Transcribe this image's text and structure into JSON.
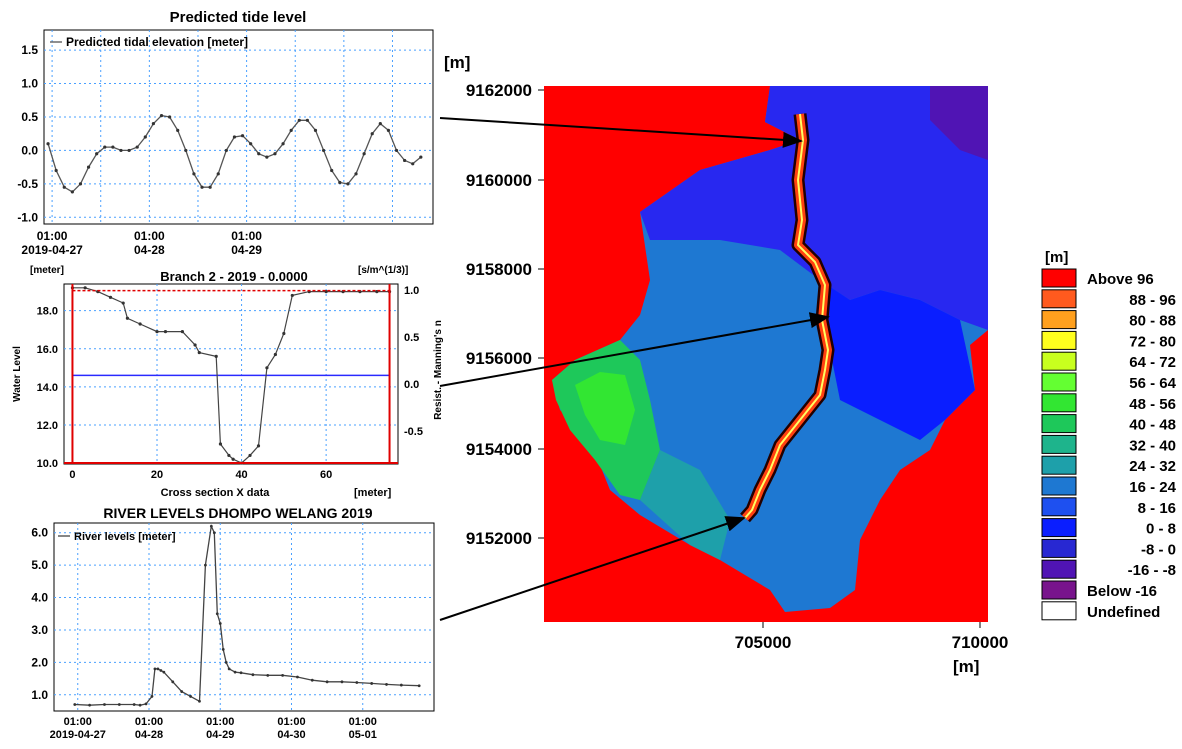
{
  "chart_data": [
    {
      "type": "line",
      "title": "Predicted tide level",
      "series": [
        {
          "name": "Predicted tidal elevation [meter]",
          "x": [
            0,
            2,
            4,
            6,
            8,
            10,
            12,
            14,
            16,
            18,
            20,
            22,
            24,
            26,
            28,
            30,
            32,
            34,
            36,
            38,
            40,
            42,
            44,
            46,
            48,
            50,
            52,
            54,
            56,
            58,
            60,
            62,
            64,
            66,
            68,
            70,
            72,
            74,
            76,
            78,
            80,
            82,
            84,
            86,
            88,
            90,
            92
          ],
          "values": [
            0.1,
            -0.3,
            -0.55,
            -0.62,
            -0.5,
            -0.25,
            -0.05,
            0.05,
            0.05,
            0.0,
            0.0,
            0.05,
            0.2,
            0.4,
            0.52,
            0.5,
            0.3,
            0.0,
            -0.35,
            -0.55,
            -0.55,
            -0.35,
            0.0,
            0.2,
            0.22,
            0.1,
            -0.05,
            -0.1,
            -0.05,
            0.1,
            0.3,
            0.45,
            0.45,
            0.3,
            0.0,
            -0.3,
            -0.48,
            -0.5,
            -0.35,
            -0.05,
            0.25,
            0.4,
            0.3,
            0.0,
            -0.15,
            -0.2,
            -0.1
          ]
        }
      ],
      "xticks": [
        {
          "h": 1,
          "top": "01:00",
          "bottom": "2019-04-27"
        },
        {
          "h": 25,
          "top": "01:00",
          "bottom": "04-28"
        },
        {
          "h": 49,
          "top": "01:00",
          "bottom": "04-29"
        }
      ],
      "yticks": [
        "1.5",
        "1.0",
        "0.5",
        "0.0",
        "-0.5",
        "-1.0"
      ],
      "ylim": [
        -1.1,
        1.8
      ]
    },
    {
      "type": "line",
      "title": "Branch 2 - 2019 - 0.0000",
      "left_unit": "[meter]",
      "right_unit": "[s/m^(1/3)]",
      "xlabel": "Cross section X data",
      "xunit": "[meter]",
      "ylabel": "Water Level",
      "y2label": "Resist. - Manning's n",
      "xlim": [
        -2,
        77
      ],
      "ylim": [
        9.95,
        19.4
      ],
      "xticks": [
        "0",
        "20",
        "40",
        "60"
      ],
      "yticks": [
        "18.0",
        "16.0",
        "14.0",
        "12.0",
        "10.0"
      ],
      "y2ticks": [
        "1.0",
        "0.5",
        "0.0",
        "-0.5"
      ],
      "profile_x": [
        0,
        3,
        6,
        9,
        12,
        13,
        16,
        20,
        22,
        26,
        29,
        30,
        34,
        35,
        37,
        38,
        40,
        42,
        44,
        46,
        48,
        50,
        52,
        56,
        60,
        64,
        68,
        72,
        75
      ],
      "profile_y": [
        19.2,
        19.2,
        19.0,
        18.7,
        18.4,
        17.6,
        17.3,
        16.9,
        16.9,
        16.9,
        16.2,
        15.8,
        15.6,
        11.0,
        10.4,
        10.2,
        10.0,
        10.4,
        10.9,
        15.0,
        15.7,
        16.8,
        18.8,
        19.0,
        19.0,
        19.0,
        19.0,
        19.0,
        19.0
      ],
      "water_level": 14.6
    },
    {
      "type": "line",
      "title": "RIVER LEVELS DHOMPO WELANG 2019",
      "series": [
        {
          "name": "River levels [meter]",
          "x": [
            0,
            5,
            10,
            15,
            20,
            22,
            24,
            26,
            27,
            28,
            29,
            30,
            33,
            36,
            39,
            42,
            44,
            46,
            47,
            48,
            49,
            50,
            51,
            52,
            54,
            56,
            60,
            65,
            70,
            75,
            80,
            85,
            90,
            95,
            100,
            105,
            110,
            116
          ],
          "values": [
            0.7,
            0.68,
            0.7,
            0.7,
            0.7,
            0.68,
            0.72,
            0.95,
            1.8,
            1.8,
            1.75,
            1.7,
            1.4,
            1.1,
            0.95,
            0.8,
            5.0,
            6.2,
            6.0,
            3.5,
            3.2,
            2.4,
            2.0,
            1.8,
            1.7,
            1.68,
            1.62,
            1.6,
            1.6,
            1.55,
            1.45,
            1.4,
            1.4,
            1.38,
            1.35,
            1.32,
            1.3,
            1.28
          ]
        }
      ],
      "xticks": [
        {
          "h": 1,
          "top": "01:00",
          "bottom": "2019-04-27"
        },
        {
          "h": 25,
          "top": "01:00",
          "bottom": "04-28"
        },
        {
          "h": 49,
          "top": "01:00",
          "bottom": "04-29"
        },
        {
          "h": 73,
          "top": "01:00",
          "bottom": "04-30"
        },
        {
          "h": 97,
          "top": "01:00",
          "bottom": "05-01"
        }
      ],
      "yticks": [
        "6.0",
        "5.0",
        "4.0",
        "3.0",
        "2.0",
        "1.0"
      ],
      "ylim": [
        0.5,
        6.3
      ]
    },
    {
      "type": "heatmap",
      "unit_label": "[m]",
      "y_axis_unit": "[m]",
      "x_axis_unit": "[m]",
      "yticks": [
        "9162000",
        "9160000",
        "9158000",
        "9156000",
        "9154000",
        "9152000"
      ],
      "xticks": [
        "705000",
        "710000"
      ],
      "legend_title": "[m]",
      "legend": [
        {
          "label": "Above  96",
          "color": "#ff0000"
        },
        {
          "label": "88 -  96",
          "color": "#ff5a1e"
        },
        {
          "label": "80 -  88",
          "color": "#ffa01e"
        },
        {
          "label": "72 -  80",
          "color": "#ffff1e"
        },
        {
          "label": "64 -  72",
          "color": "#c8ff1e"
        },
        {
          "label": "56 -  64",
          "color": "#64ff32"
        },
        {
          "label": "48 -  56",
          "color": "#32e632"
        },
        {
          "label": "40 -  48",
          "color": "#1ec85a"
        },
        {
          "label": "32 -  40",
          "color": "#1eb48c"
        },
        {
          "label": "24 -  32",
          "color": "#1ea0aa"
        },
        {
          "label": "16 -  24",
          "color": "#1e78d2"
        },
        {
          "label": "8 -  16",
          "color": "#1e50f0"
        },
        {
          "label": "0 -   8",
          "color": "#0a1eff"
        },
        {
          "label": "-8 -   0",
          "color": "#2828d2"
        },
        {
          "label": "-16 -  -8",
          "color": "#5014b4"
        },
        {
          "label": "Below -16",
          "color": "#78148c"
        },
        {
          "label": "Undefined",
          "color": "#ffffff"
        }
      ]
    }
  ]
}
